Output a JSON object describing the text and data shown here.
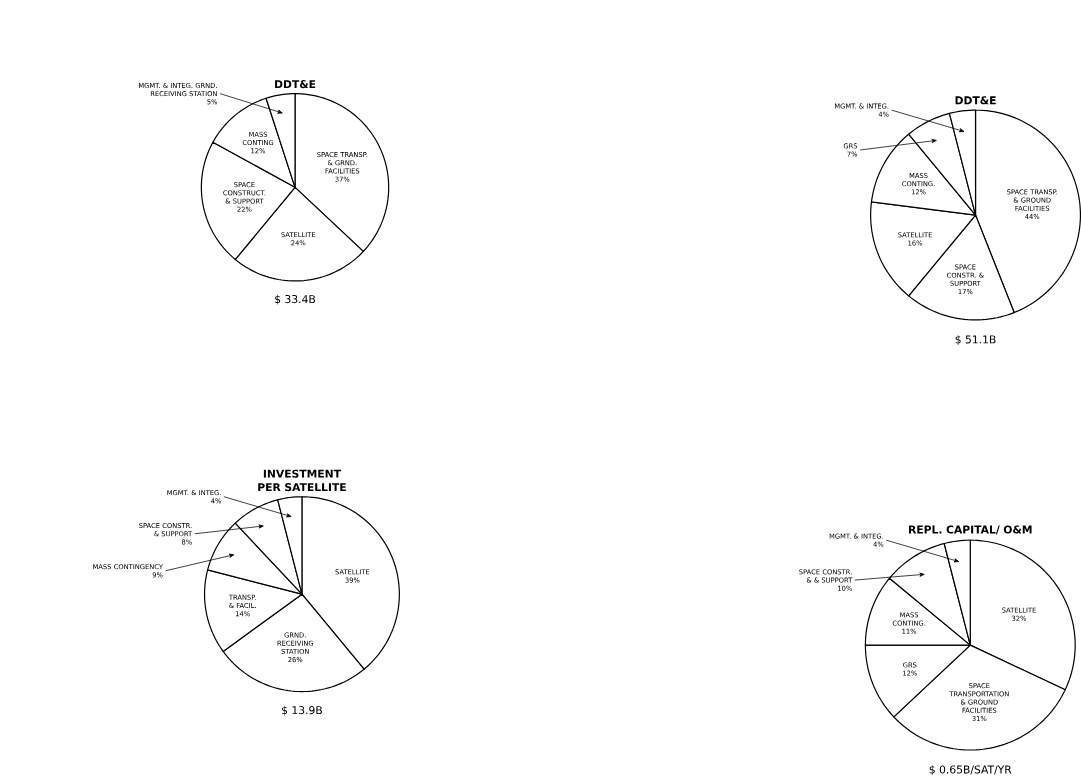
{
  "chart_data": [
    {
      "type": "pie",
      "title": "DDT&E",
      "categories": [
        "SPACE TRANSP. & GRND. FACILITIES",
        "SATELLITE",
        "SPACE CONSTRUCT. & SUPPORT",
        "MASS CONTING",
        "MGMT. & INTEG. GRND. RECEIVING STATION"
      ],
      "values": [
        37,
        24,
        22,
        12,
        5
      ],
      "value_labels": [
        "37%",
        "24%",
        "22%",
        "12%",
        "5%"
      ],
      "colors": [
        "#ffffff",
        "#ffffff",
        "#ffffff",
        "#ffffff",
        "#ffffff"
      ],
      "annotations": [
        "$ 33.4B"
      ]
    },
    {
      "type": "pie",
      "title": "DDT&E",
      "categories": [
        "SPACE TRANSP. & GROUND FACILITIES",
        "SPACE CONSTR. & SUPPORT",
        "SATELLITE",
        "MASS CONTING.",
        "GRS",
        "MGMT. & INTEG."
      ],
      "values": [
        44,
        17,
        16,
        12,
        7,
        4
      ],
      "value_labels": [
        "44%",
        "17%",
        "16%",
        "12%",
        "7%",
        "4%"
      ],
      "colors": [
        "#ffffff",
        "#ffffff",
        "#ffffff",
        "#ffffff",
        "#ffffff",
        "#ffffff"
      ],
      "annotations": [
        "$ 51.1B"
      ]
    },
    {
      "type": "pie",
      "title": "INVESTMENT PER SATELLITE",
      "categories": [
        "SATELLITE",
        "GRND. RECEIVING STATION",
        "TRANSP. & FACIL.",
        "MASS CONTINGENCY",
        "SPACE CONSTR. & SUPPORT",
        "MGMT. & INTEG."
      ],
      "values": [
        39,
        26,
        14,
        9,
        8,
        4
      ],
      "value_labels": [
        "39%",
        "26%",
        "14%",
        "9%",
        "8%",
        "4%"
      ],
      "colors": [
        "#ffffff",
        "#ffffff",
        "#ffffff",
        "#ffffff",
        "#ffffff",
        "#ffffff"
      ],
      "annotations": [
        "$ 13.9B"
      ]
    },
    {
      "type": "pie",
      "title": "REPL. CAPITAL/ O&M",
      "categories": [
        "SATELLITE",
        "SPACE TRANSPORTATION & GROUND FACILITIES",
        "GRS",
        "MASS CONTING.",
        "SPACE CONSTR. & & SUPPORT",
        "MGMT. & INTEG."
      ],
      "values": [
        32,
        31,
        12,
        11,
        10,
        4
      ],
      "value_labels": [
        "32%",
        "31%",
        "12%",
        "11%",
        "10%",
        "4%"
      ],
      "colors": [
        "#ffffff",
        "#ffffff",
        "#ffffff",
        "#ffffff",
        "#ffffff",
        "#ffffff"
      ],
      "annotations": [
        "$ 0.65B/SAT/YR"
      ]
    }
  ]
}
